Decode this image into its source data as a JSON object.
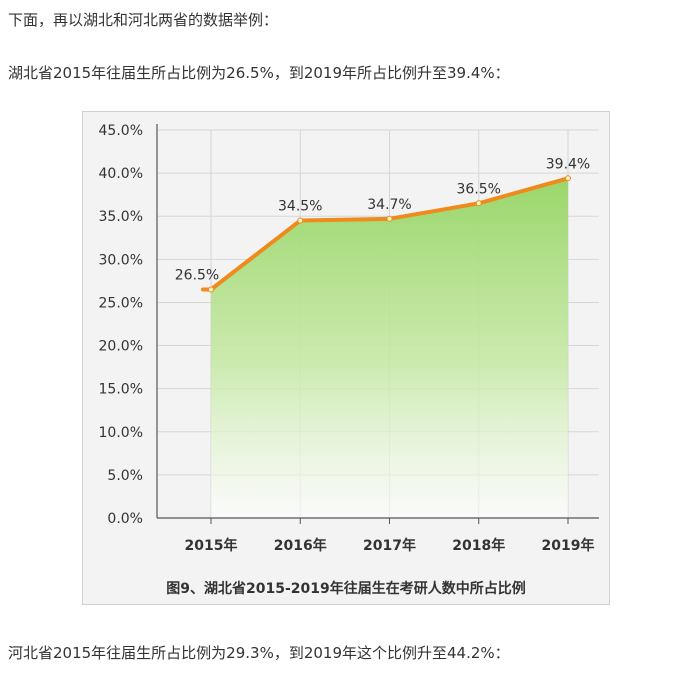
{
  "article": {
    "intro": "下面，再以湖北和河北两省的数据举例：",
    "hubei_text": "湖北省2015年往届生所占比例为26.5%，到2019年所占比例升至39.4%：",
    "hebei_text": "河北省2015年往届生所占比例为29.3%，到2019年这个比例升至44.2%："
  },
  "figure": {
    "caption": "图9、湖北省2015-2019年往届生在考研人数中所占比例"
  },
  "colors": {
    "line": "#ef8a1e",
    "area": "#9ad66a",
    "grid": "#d6d6d6",
    "background": "#f3f3f3"
  },
  "chart_data": {
    "type": "area",
    "title": "",
    "xlabel": "",
    "ylabel": "",
    "categories": [
      "2015年",
      "2016年",
      "2017年",
      "2018年",
      "2019年"
    ],
    "series": [
      {
        "values": [
          26.5,
          34.5,
          34.7,
          36.5,
          39.4
        ]
      }
    ],
    "data_labels": [
      "26.5%",
      "34.5%",
      "34.7%",
      "36.5%",
      "39.4%"
    ],
    "y_ticks": [
      "0.0%",
      "5.0%",
      "10.0%",
      "15.0%",
      "20.0%",
      "25.0%",
      "30.0%",
      "35.0%",
      "40.0%",
      "45.0%"
    ],
    "ylim": [
      0,
      45
    ],
    "grid": true,
    "legend": "none"
  }
}
